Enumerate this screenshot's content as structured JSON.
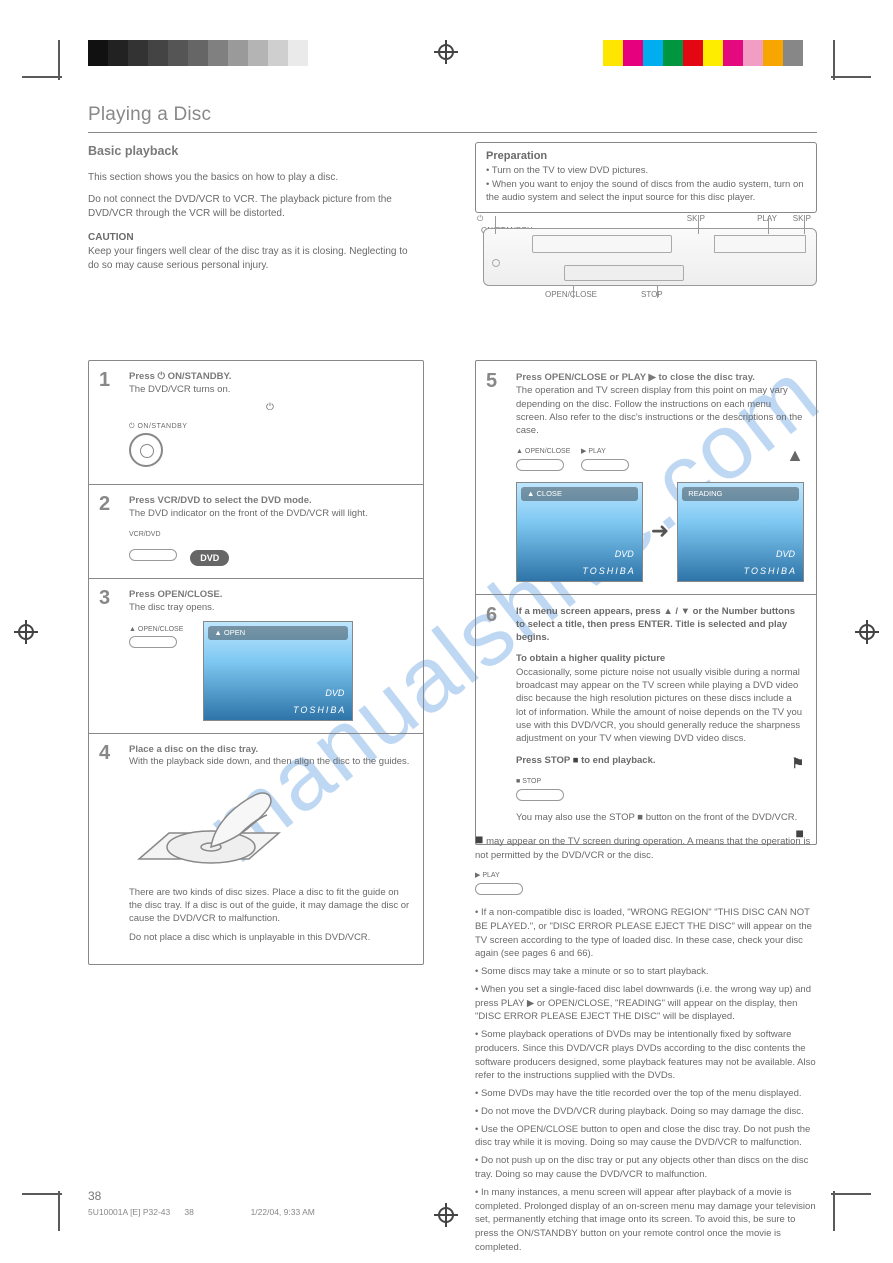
{
  "calibration": {
    "grays": [
      "#111111",
      "#222222",
      "#333333",
      "#444444",
      "#555555",
      "#666666",
      "#808080",
      "#9a9a9a",
      "#b4b4b4",
      "#cfcfcf",
      "#eaeaea",
      "#ffffff"
    ],
    "colors": [
      "#ffe600",
      "#e6007e",
      "#00aeef",
      "#009640",
      "#e30613",
      "#ffed00",
      "#e5097f",
      "#f29ec4",
      "#f7a600",
      "#878787"
    ]
  },
  "page": {
    "title": "Playing a Disc",
    "number": "38",
    "footer": "5U10001A [E] P32-43",
    "footer_meta": "1/22/04, 9:33 AM",
    "footer_left_num": "38"
  },
  "intro": {
    "heading": "Basic playback",
    "p1": "This section shows you the basics on how to play a disc.",
    "p2": "Do not connect the DVD/VCR to VCR. The playback picture from the DVD/VCR through the VCR will be distorted.",
    "caution_hd": "CAUTION",
    "caution": "Keep your fingers well clear of the disc tray as it is closing. Neglecting to do so may cause serious personal injury."
  },
  "prep": {
    "hd": "Preparation",
    "l1": "• Turn on the TV to view DVD pictures.",
    "l2": "• When you want to enjoy the sound of discs from the audio system, turn on the audio system and select the input source for this disc player."
  },
  "device_labels": {
    "pwr": "ON/STANDBY",
    "eject": "OPEN/CLOSE",
    "play": "PLAY",
    "stop": "STOP",
    "skipr": "SKIP",
    "skipf": "SKIP"
  },
  "steps_left": [
    {
      "num": "1",
      "title_pre": "Press ",
      "title_sym": "⏻",
      "title_post": " ON/STANDBY.",
      "body": "The DVD/VCR turns on.",
      "btn_caption": "ON/STANDBY"
    },
    {
      "num": "2",
      "title_pre": "Press VCR/DVD to select the DVD mode.",
      "body": "The DVD indicator on the front of the DVD/VCR will light.",
      "btn_caption": "VCR/DVD",
      "chip": "DVD"
    },
    {
      "num": "3",
      "title_pre": "Press OPEN/CLOSE.",
      "body": "The disc tray opens.",
      "btn_caption": "OPEN/CLOSE",
      "tv_bubble": "OPEN"
    },
    {
      "num": "4",
      "title_pre": "Place a disc on the disc tray.",
      "body1": "With the playback side down, and then align the disc to the guides.",
      "body2": "There are two kinds of disc sizes. Place a disc to fit the guide on the disc tray. If a disc is out of the guide, it may damage the disc or cause the DVD/VCR to malfunction.",
      "body3": "Do not place a disc which is unplayable in this DVD/VCR."
    }
  ],
  "steps_right": [
    {
      "num": "5",
      "title_pre": "Press OPEN/CLOSE or PLAY ",
      "title_sym": "▶",
      "title_post": " to close the disc tray.",
      "body": "The operation and TV screen display from this point on may vary depending on the disc. Follow the instructions on each menu screen. Also refer to the disc's instructions or the descriptions on the case.",
      "btn_left_caption": "OPEN/CLOSE",
      "btn_right_caption": "PLAY",
      "tv_left_bubble": "CLOSE",
      "tv_right_bubble": "READING"
    },
    {
      "num": "6",
      "line1_pre": "If a menu screen appears, press ▲ / ▼ or the Number buttons to select a title, then press ENTER. Title is selected and play begins.",
      "sub_hd": "To obtain a higher quality picture",
      "sub_body": "Occasionally, some picture noise not usually visible during a normal broadcast may appear on the TV screen while playing a DVD video disc because the high resolution pictures on these discs include a lot of information. While the amount of noise depends on the TV you use with this DVD/VCR, you should generally reduce the sharpness adjustment on your TV when viewing DVD video discs.",
      "stop_pre": "Press STOP ",
      "stop_sym": "■",
      "stop_post": " to end playback.",
      "btn_stop_caption": "STOP",
      "front_note_pre": "You may also use the STOP ",
      "front_note_sym": "■",
      "front_note_post": " button on the front of the DVD/VCR."
    }
  ],
  "below_right": {
    "stop_sym": "■",
    "p1": " may appear on the TV screen during operation. A  means that the operation is not permitted by the DVD/VCR or the disc.",
    "play_caption": "PLAY",
    "p2": "• If a non-compatible disc is loaded, \"WRONG REGION\" \"THIS DISC CAN NOT BE PLAYED.\", or \"DISC ERROR PLEASE EJECT THE DISC\" will appear on the TV screen according to the type of loaded disc. In these case, check your disc again (see pages 6 and 66).",
    "p3": "• Some discs may take a minute or so to start playback.",
    "p4": "• When you set a single-faced disc label downwards (i.e. the wrong way up) and press PLAY ▶ or OPEN/CLOSE, \"READING\" will appear on the display, then \"DISC ERROR PLEASE EJECT THE DISC\" will be displayed.",
    "p5": "• Some playback operations of DVDs may be intentionally fixed by software producers. Since this DVD/VCR plays DVDs according to the disc contents the software producers designed, some playback features may not be available. Also refer to the instructions supplied with the DVDs.",
    "p6": "• Some DVDs may have the title recorded over the top of the menu displayed.",
    "p7": "• Do not move the DVD/VCR during playback. Doing so may damage the disc.",
    "p8": "• Use the OPEN/CLOSE button to open and close the disc tray. Do not push the disc tray while it is moving. Doing so may cause the DVD/VCR to malfunction.",
    "p9": "• Do not push up on the disc tray or put any objects other than discs on the disc tray. Doing so may cause the DVD/VCR to malfunction.",
    "p10": "• In many instances, a menu screen will appear after playback of a movie is completed. Prolonged display of an on-screen menu may damage your television set, permanently etching that image onto its screen. To avoid this, be sure to press the ON/STANDBY button on your remote control once the movie is completed."
  },
  "watermark": "manualshive.com",
  "screens": {
    "dvd_logo": "DVD",
    "brand": "TOSHIBA"
  }
}
